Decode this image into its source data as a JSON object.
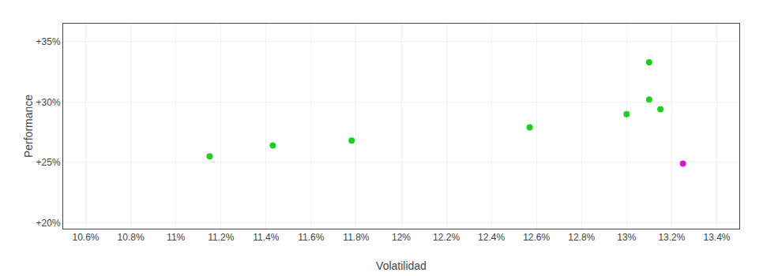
{
  "chart_data": {
    "type": "scatter",
    "xlabel": "Volatilidad",
    "ylabel": "Performance",
    "series": [
      {
        "color": "#22cc22",
        "x": [
          11.15,
          11.43,
          11.78,
          12.57,
          13.0,
          13.1,
          13.15,
          13.1
        ],
        "values": [
          25.5,
          26.4,
          26.8,
          27.9,
          29.0,
          30.2,
          29.4,
          33.3
        ]
      },
      {
        "color": "#cc22cc",
        "x": [
          13.25
        ],
        "values": [
          24.9
        ]
      }
    ],
    "xlim": [
      10.5,
      13.5
    ],
    "xticks": [
      {
        "value": 10.6,
        "label": "10.6%"
      },
      {
        "value": 10.8,
        "label": "10.8%"
      },
      {
        "value": 11,
        "label": "11%"
      },
      {
        "value": 11.2,
        "label": "11.2%"
      },
      {
        "value": 11.4,
        "label": "11.4%"
      },
      {
        "value": 11.6,
        "label": "11.6%"
      },
      {
        "value": 11.8,
        "label": "11.8%"
      },
      {
        "value": 12,
        "label": "12%"
      },
      {
        "value": 12.2,
        "label": "12.2%"
      },
      {
        "value": 12.4,
        "label": "12.4%"
      },
      {
        "value": 12.6,
        "label": "12.6%"
      },
      {
        "value": 12.8,
        "label": "12.8%"
      },
      {
        "value": 13,
        "label": "13%"
      },
      {
        "value": 13.2,
        "label": "13.2%"
      },
      {
        "value": 13.4,
        "label": "13.4%"
      }
    ],
    "ylim": [
      19.5,
      36.5
    ],
    "yticks": [
      {
        "value": 20,
        "label": "+20%"
      },
      {
        "value": 25,
        "label": "+25%"
      },
      {
        "value": 30,
        "label": "+30%"
      },
      {
        "value": 35,
        "label": "+35%"
      }
    ],
    "grid": true
  }
}
